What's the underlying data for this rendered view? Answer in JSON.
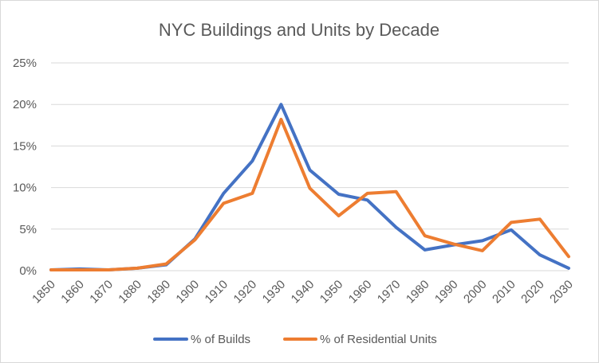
{
  "chart_data": {
    "type": "line",
    "title": "NYC Buildings and Units by Decade",
    "xlabel": "",
    "ylabel": "",
    "categories": [
      "1850",
      "1860",
      "1870",
      "1880",
      "1890",
      "1900",
      "1910",
      "1920",
      "1930",
      "1940",
      "1950",
      "1960",
      "1970",
      "1980",
      "1990",
      "2000",
      "2010",
      "2020",
      "2030"
    ],
    "ylim": [
      0,
      25
    ],
    "yticks": [
      0,
      5,
      10,
      15,
      20,
      25
    ],
    "ytick_labels": [
      "0%",
      "5%",
      "10%",
      "15%",
      "20%",
      "25%"
    ],
    "grid": true,
    "legend_position": "bottom",
    "series": [
      {
        "name": "%  of Builds",
        "color": "#4472C4",
        "values": [
          0.1,
          0.2,
          0.1,
          0.3,
          0.7,
          3.8,
          9.3,
          13.2,
          20.0,
          12.1,
          9.2,
          8.5,
          5.2,
          2.5,
          3.1,
          3.6,
          4.9,
          1.9,
          0.3
        ]
      },
      {
        "name": "% of Residential Units",
        "color": "#ED7D31",
        "values": [
          0.1,
          0.1,
          0.1,
          0.3,
          0.8,
          3.7,
          8.1,
          9.3,
          18.2,
          9.9,
          6.6,
          9.3,
          9.5,
          4.2,
          3.2,
          2.4,
          5.8,
          6.2,
          1.7
        ]
      }
    ]
  }
}
